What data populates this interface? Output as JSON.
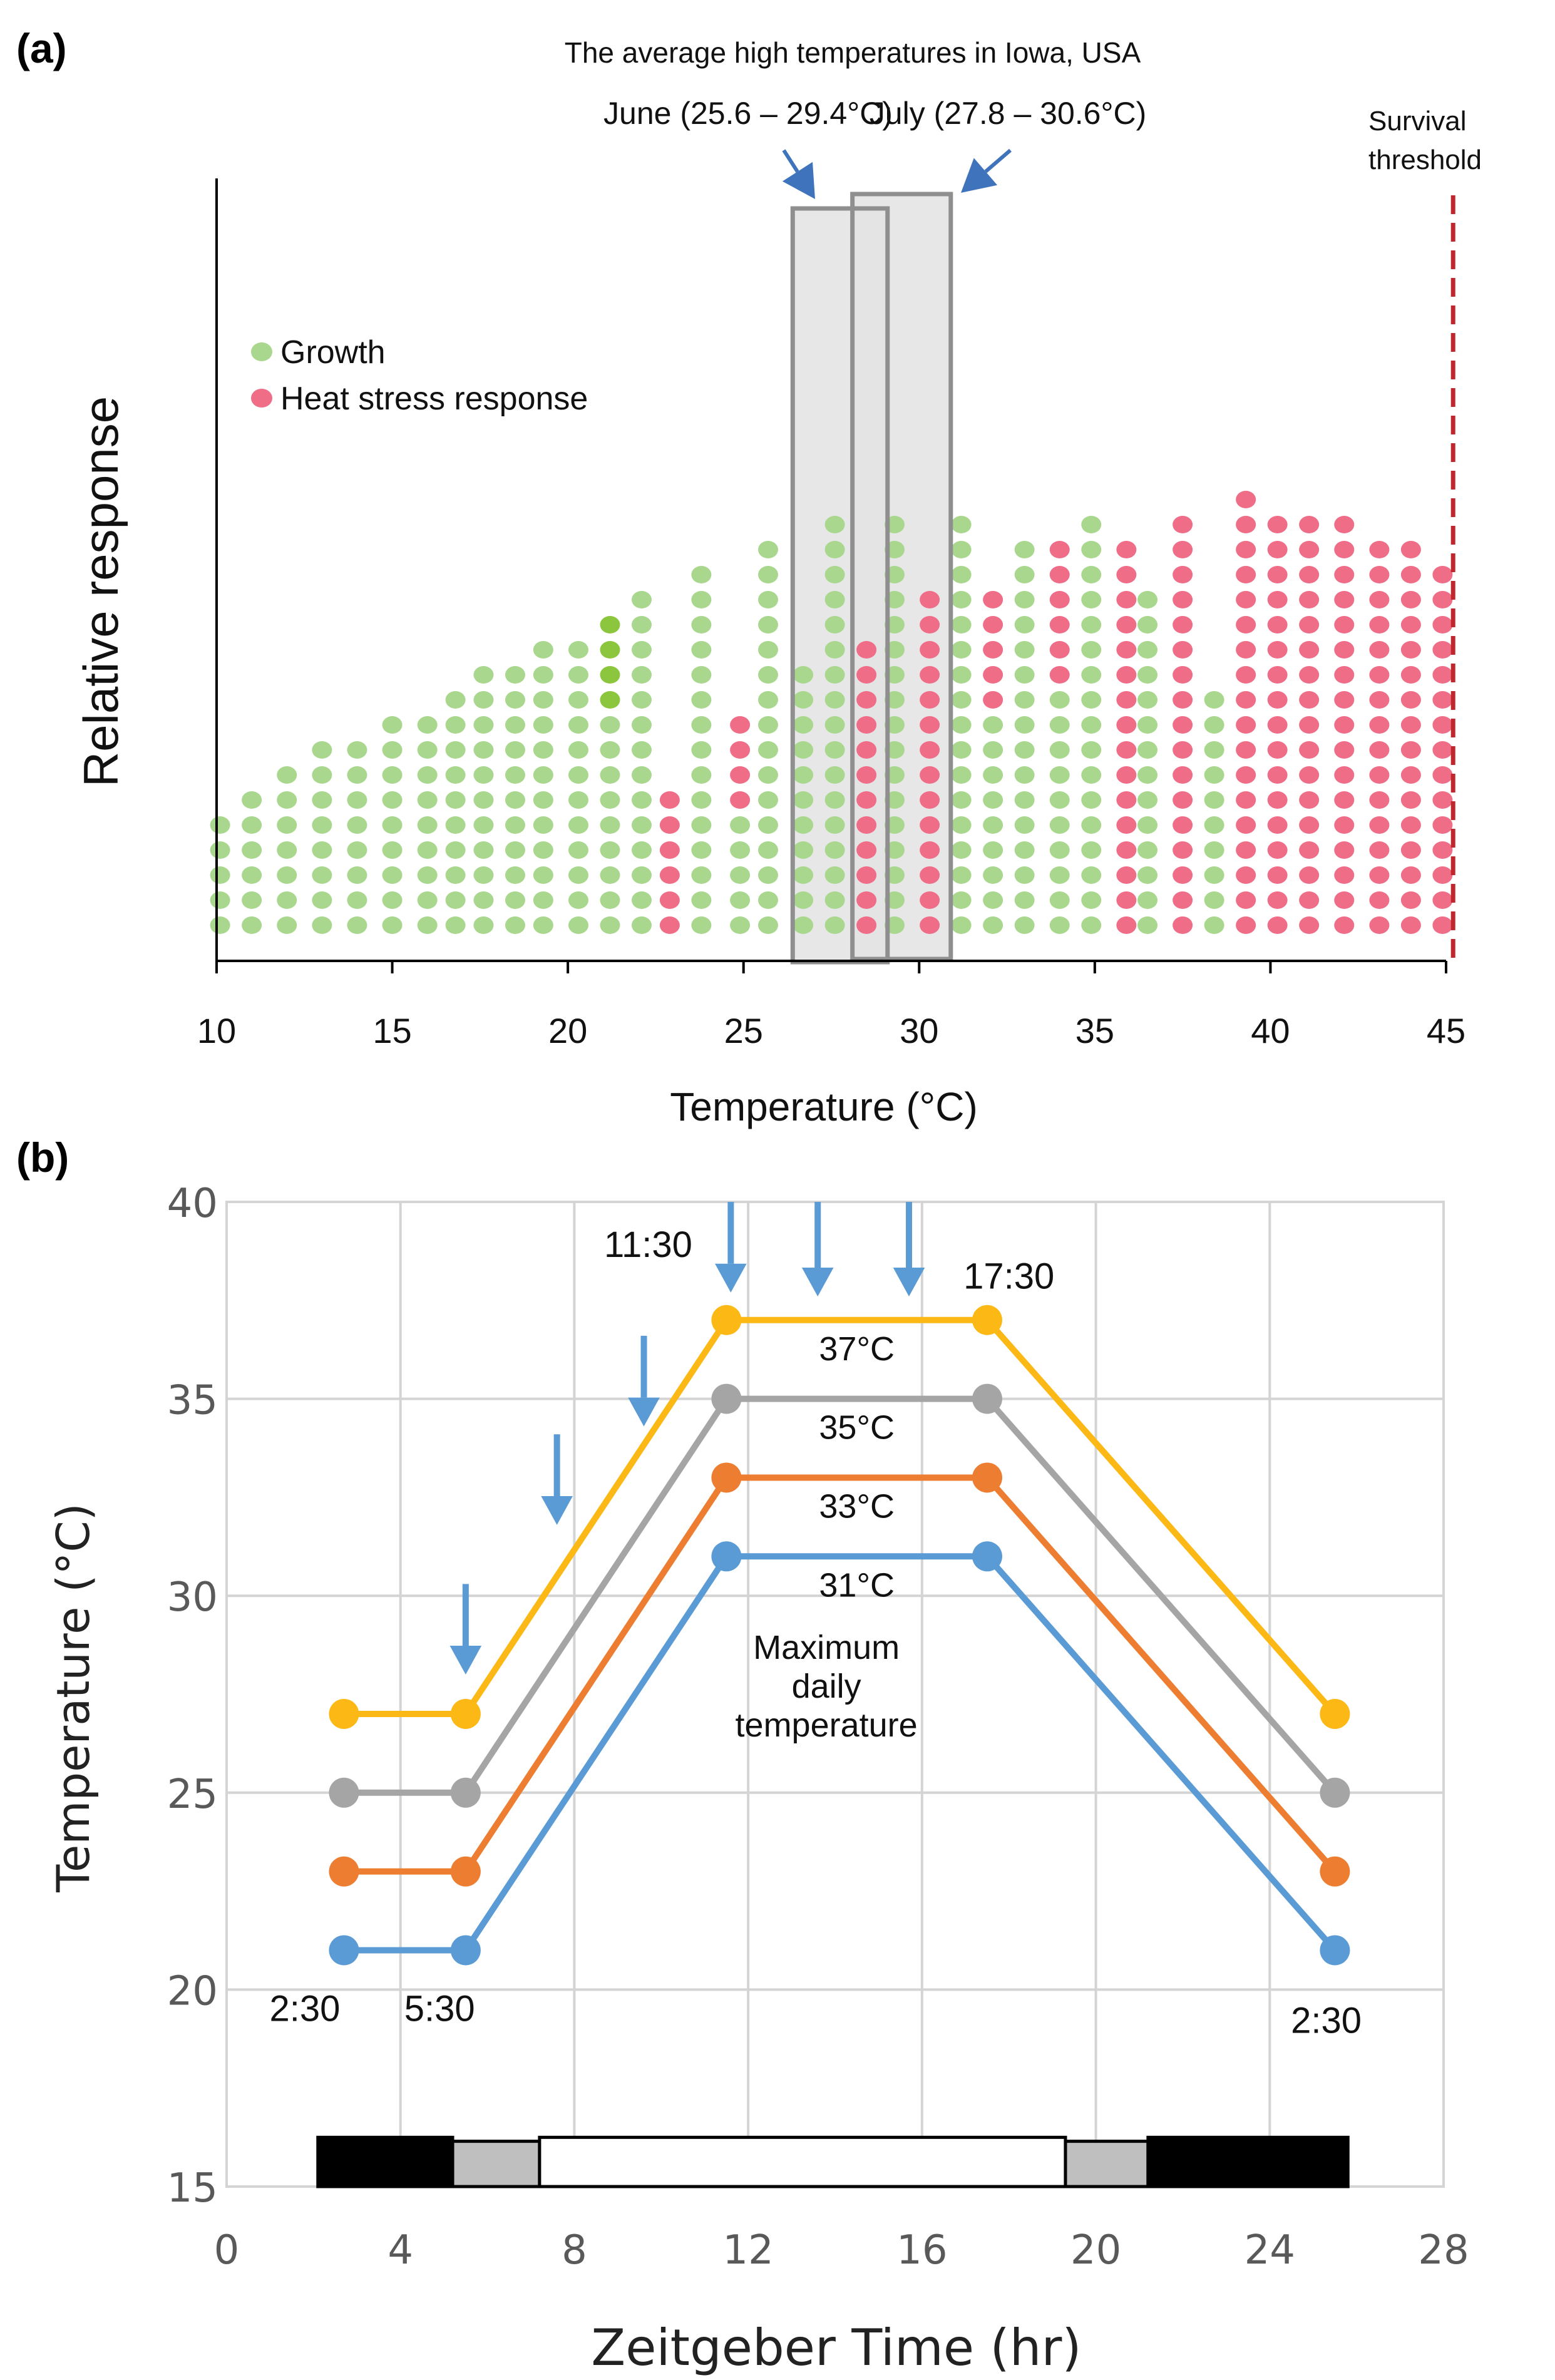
{
  "chart_data": [
    {
      "panel_label": "(a)",
      "type": "scatter",
      "title": "The average high temperatures in Iowa, USA",
      "xlabel": "Temperature (°C)",
      "ylabel": "Relative response",
      "xlim": [
        10,
        45
      ],
      "xticks": [
        10,
        15,
        20,
        25,
        30,
        35,
        40,
        45
      ],
      "legend": [
        "Growth",
        "Heat stress response"
      ],
      "colors": {
        "growth": "#a9d78e",
        "growth_dark": "#8cc63f",
        "heat": "#ef6d86",
        "threshold": "#c0272d",
        "box_fill": "#e3e3e3",
        "box_stroke": "#8f8f8f",
        "arrow": "#3f74bd"
      },
      "growth_columns": [
        {
          "x": 10.1,
          "n": 5
        },
        {
          "x": 11.0,
          "n": 6
        },
        {
          "x": 12.0,
          "n": 7
        },
        {
          "x": 13.0,
          "n": 8
        },
        {
          "x": 14.0,
          "n": 8
        },
        {
          "x": 15.0,
          "n": 9
        },
        {
          "x": 16.0,
          "n": 9
        },
        {
          "x": 16.8,
          "n": 10
        },
        {
          "x": 17.6,
          "n": 11
        },
        {
          "x": 18.5,
          "n": 11
        },
        {
          "x": 19.3,
          "n": 12
        },
        {
          "x": 20.3,
          "n": 12
        },
        {
          "x": 21.2,
          "n": 13,
          "dark": [
            9,
            10,
            11,
            12
          ]
        },
        {
          "x": 22.1,
          "n": 14
        },
        {
          "x": 23.8,
          "n": 15
        },
        {
          "x": 24.9,
          "n": 5
        },
        {
          "x": 25.7,
          "n": 16
        },
        {
          "x": 26.7,
          "n": 11
        },
        {
          "x": 27.6,
          "n": 17
        },
        {
          "x": 29.3,
          "n": 17
        },
        {
          "x": 31.2,
          "n": 17
        },
        {
          "x": 32.1,
          "n": 9
        },
        {
          "x": 33.0,
          "n": 16
        },
        {
          "x": 34.0,
          "n": 10
        },
        {
          "x": 34.9,
          "n": 17
        },
        {
          "x": 36.5,
          "n": 14
        },
        {
          "x": 38.4,
          "n": 10
        }
      ],
      "heat_columns": [
        {
          "x": 22.9,
          "n": 6
        },
        {
          "x": 24.9,
          "n": 9,
          "start": 5
        },
        {
          "x": 26.7,
          "n": 11,
          "start": 11
        },
        {
          "x": 28.5,
          "n": 12
        },
        {
          "x": 30.3,
          "n": 14
        },
        {
          "x": 32.1,
          "n": 14,
          "start": 9
        },
        {
          "x": 34.0,
          "n": 16,
          "start": 10
        },
        {
          "x": 35.9,
          "n": 16
        },
        {
          "x": 37.5,
          "n": 17
        },
        {
          "x": 39.3,
          "n": 18
        },
        {
          "x": 40.2,
          "n": 17
        },
        {
          "x": 41.1,
          "n": 17
        },
        {
          "x": 42.1,
          "n": 17
        },
        {
          "x": 43.1,
          "n": 16
        },
        {
          "x": 44.0,
          "n": 16
        },
        {
          "x": 44.9,
          "n": 15
        }
      ],
      "month_boxes": [
        {
          "label": "June (25.6 – 29.4°C)",
          "x_range": [
            26.4,
            29.1
          ],
          "height_rank": 1
        },
        {
          "label": "July (27.8 – 30.6°C)",
          "x_range": [
            28.1,
            30.9
          ],
          "height_rank": 2
        }
      ],
      "threshold": {
        "x": 45.2,
        "label_line1": "Survival",
        "label_line2": "threshold"
      }
    },
    {
      "panel_label": "(b)",
      "type": "line",
      "xlabel": "Zeitgeber Time (hr)",
      "ylabel": "Temperature (°C)",
      "xlim": [
        0,
        28
      ],
      "ylim": [
        15,
        40
      ],
      "xticks": [
        0,
        4,
        8,
        12,
        16,
        20,
        24,
        28
      ],
      "yticks": [
        15,
        20,
        25,
        30,
        35,
        40
      ],
      "grid": true,
      "x": [
        2.7,
        5.5,
        11.5,
        17.5,
        25.5
      ],
      "series": [
        {
          "name": "37°C",
          "values": [
            27,
            27,
            37,
            37,
            27
          ],
          "color": "#fcb814"
        },
        {
          "name": "35°C",
          "values": [
            25,
            25,
            35,
            35,
            25
          ],
          "color": "#a5a5a5"
        },
        {
          "name": "33°C",
          "values": [
            23,
            23,
            33,
            33,
            23
          ],
          "color": "#ed7d31"
        },
        {
          "name": "31°C",
          "values": [
            21,
            21,
            31,
            31,
            21
          ],
          "color": "#5b9bd5"
        }
      ],
      "time_labels": [
        {
          "text": "2:30",
          "x": 1.8,
          "y": 19.2
        },
        {
          "text": "5:30",
          "x": 4.9,
          "y": 19.2
        },
        {
          "text": "11:30",
          "x": 9.7,
          "y": 38.6
        },
        {
          "text": "17:30",
          "x": 18.0,
          "y": 37.8
        },
        {
          "text": "2:30",
          "x": 25.3,
          "y": 18.9
        }
      ],
      "annotation": {
        "line1": "Maximum",
        "line2": "daily",
        "line3": "temperature",
        "x": 13.8,
        "y": 28.4
      },
      "sampling_arrows": [
        {
          "x": 5.5,
          "y_top": 30.3,
          "y_tip": 28.0
        },
        {
          "x": 7.6,
          "y_top": 34.1,
          "y_tip": 31.8
        },
        {
          "x": 9.6,
          "y_top": 36.6,
          "y_tip": 34.3
        },
        {
          "x": 11.6,
          "y_top": 40.0,
          "y_tip": 37.7
        },
        {
          "x": 13.6,
          "y_top": 40.0,
          "y_tip": 37.6
        },
        {
          "x": 15.7,
          "y_top": 40.0,
          "y_tip": 37.6
        }
      ],
      "photoperiod_bar": [
        {
          "phase": "dark",
          "from": 2.1,
          "to": 5.2,
          "color": "#000000"
        },
        {
          "phase": "dim",
          "from": 5.2,
          "to": 7.2,
          "color": "#bfbfbf"
        },
        {
          "phase": "light",
          "from": 7.2,
          "to": 19.3,
          "color": "#ffffff"
        },
        {
          "phase": "dim",
          "from": 19.3,
          "to": 21.2,
          "color": "#bfbfbf"
        },
        {
          "phase": "dark",
          "from": 21.2,
          "to": 25.8,
          "color": "#000000"
        }
      ]
    }
  ]
}
